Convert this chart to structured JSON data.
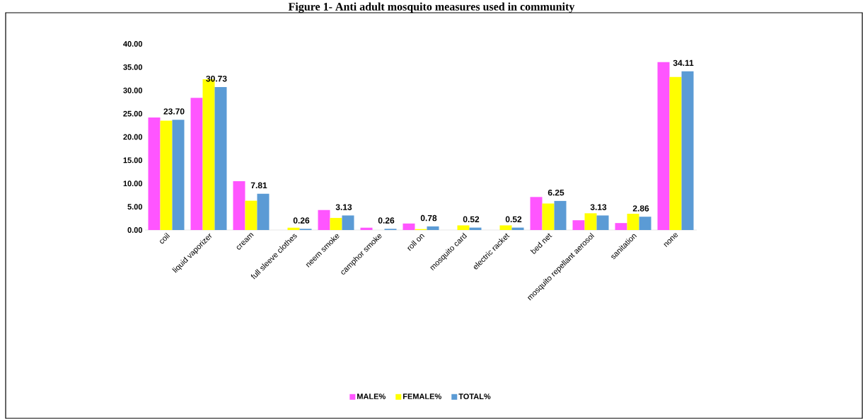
{
  "chart_data": {
    "type": "bar",
    "title": "Figure 1- Anti adult mosquito measures used in community",
    "categories": [
      "coil",
      "liquid vaporizer",
      "cream",
      "full sleeve clothes",
      "neem smoke",
      "camphor smoke",
      "roll on",
      "mosquito card",
      "electric racket",
      "bed net",
      "mosquito repellant aerosol",
      "sanitation",
      "none"
    ],
    "series": [
      {
        "name": "MALE%",
        "color": "#ff55ff",
        "values": [
          24.2,
          28.4,
          10.5,
          0,
          4.3,
          0.5,
          1.4,
          0,
          0,
          7.1,
          2.1,
          1.5,
          36.1
        ]
      },
      {
        "name": "FEMALE%",
        "color": "#ffff00",
        "values": [
          23.5,
          32.4,
          6.3,
          0.5,
          2.6,
          0,
          0.2,
          1.0,
          1.0,
          5.7,
          3.6,
          3.5,
          32.9
        ]
      },
      {
        "name": "TOTAL%",
        "color": "#5b9bd5",
        "values": [
          23.7,
          30.73,
          7.81,
          0.26,
          3.13,
          0.26,
          0.78,
          0.52,
          0.52,
          6.25,
          3.13,
          2.86,
          34.11
        ],
        "value_labels": [
          "23.70",
          "30.73",
          "7.81",
          "0.26",
          "3.13",
          "0.26",
          "0.78",
          "0.52",
          "0.52",
          "6.25",
          "3.13",
          "2.86",
          "34.11"
        ]
      }
    ],
    "ylim": [
      0,
      40
    ],
    "yticks": [
      {
        "value": 0,
        "label": "0.00"
      },
      {
        "value": 5,
        "label": "5.00"
      },
      {
        "value": 10,
        "label": "10.00"
      },
      {
        "value": 15,
        "label": "15.00"
      },
      {
        "value": 20,
        "label": "20.00"
      },
      {
        "value": 25,
        "label": "25.00"
      },
      {
        "value": 30,
        "label": "30.00"
      },
      {
        "value": 35,
        "label": "35.00"
      },
      {
        "value": 40,
        "label": "40.00"
      }
    ],
    "legend": "bottom"
  }
}
